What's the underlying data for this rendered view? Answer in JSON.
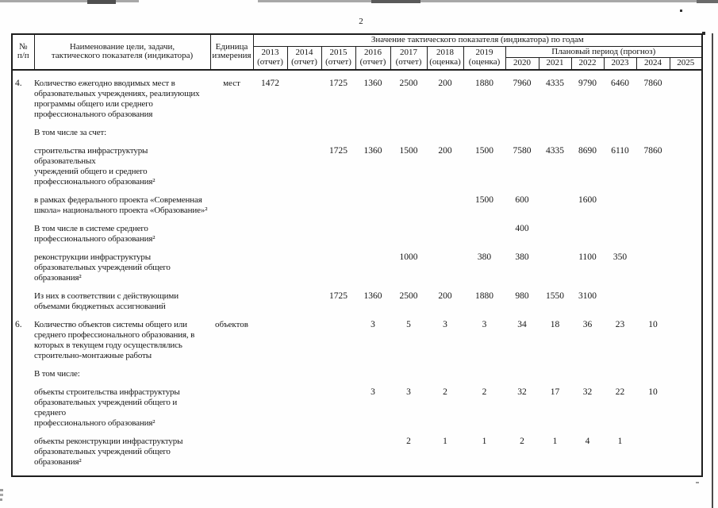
{
  "page": {
    "number": "2"
  },
  "table": {
    "header": {
      "num": "№\nп/п",
      "name": "Наименование цели, задачи,\nтактического показателя (индикатора)",
      "unit": "Единица\nизмерения",
      "values_title": "Значение тактического показателя (индикатора) по годам",
      "years": [
        "2013\n(отчет)",
        "2014\n(отчет)",
        "2015\n(отчет)",
        "2016\n(отчет)",
        "2017\n(отчет)",
        "2018\n(оценка)",
        "2019\n(оценка)"
      ],
      "plan_title": "Плановый период (прогноз)",
      "plan_years": [
        "2020",
        "2021",
        "2022",
        "2023",
        "2024",
        "2025"
      ]
    },
    "rows": [
      {
        "num": "4.",
        "label": "Количество ежегодно вводимых мест в\nобразовательных учреждениях, реализующих\nпрограммы общего или среднего\nпрофессионального образования",
        "unit": "мест",
        "values": [
          "1472",
          "",
          "1725",
          "1360",
          "2500",
          "200",
          "1880",
          "7960",
          "4335",
          "9790",
          "6460",
          "7860",
          ""
        ]
      },
      {
        "num": "",
        "label": "В том числе за счет:",
        "unit": "",
        "values": [
          "",
          "",
          "",
          "",
          "",
          "",
          "",
          "",
          "",
          "",
          "",
          "",
          ""
        ]
      },
      {
        "num": "",
        "label": "строительства инфраструктуры образовательных\nучреждений общего и среднего\nпрофессионального образования²",
        "unit": "",
        "values": [
          "",
          "",
          "1725",
          "1360",
          "1500",
          "200",
          "1500",
          "7580",
          "4335",
          "8690",
          "6110",
          "7860",
          ""
        ]
      },
      {
        "num": "",
        "label": "в рамках федерального проекта «Современная\nшкола» национального проекта «Образование»²",
        "unit": "",
        "values": [
          "",
          "",
          "",
          "",
          "",
          "",
          "1500",
          "600",
          "",
          "1600",
          "",
          "",
          ""
        ]
      },
      {
        "num": "",
        "label": "В том числе в системе среднего\nпрофессионального образования²",
        "unit": "",
        "values": [
          "",
          "",
          "",
          "",
          "",
          "",
          "",
          "400",
          "",
          "",
          "",
          "",
          ""
        ]
      },
      {
        "num": "",
        "label": "реконструкции инфраструктуры\nобразовательных учреждений общего\nобразования²",
        "unit": "",
        "values": [
          "",
          "",
          "",
          "",
          "1000",
          "",
          "380",
          "380",
          "",
          "1100",
          "350",
          "",
          ""
        ]
      },
      {
        "num": "",
        "label": "Из них в соответствии с действующими\nобъемами бюджетных ассигнований",
        "unit": "",
        "values": [
          "",
          "",
          "1725",
          "1360",
          "2500",
          "200",
          "1880",
          "980",
          "1550",
          "3100",
          "",
          "",
          ""
        ]
      },
      {
        "num": "6.",
        "label": "Количество объектов системы общего или\nсреднего профессионального образования, в\nкоторых в текущем году осуществлялись\nстроительно-монтажные работы",
        "unit": "объектов",
        "values": [
          "",
          "",
          "",
          "3",
          "5",
          "3",
          "3",
          "34",
          "18",
          "36",
          "23",
          "10",
          ""
        ]
      },
      {
        "num": "",
        "label": "В том числе:",
        "unit": "",
        "values": [
          "",
          "",
          "",
          "",
          "",
          "",
          "",
          "",
          "",
          "",
          "",
          "",
          ""
        ]
      },
      {
        "num": "",
        "label": "объекты строительства инфраструктуры\nобразовательных учреждений общего и среднего\nпрофессионального образования²",
        "unit": "",
        "values": [
          "",
          "",
          "",
          "3",
          "3",
          "2",
          "2",
          "32",
          "17",
          "32",
          "22",
          "10",
          ""
        ]
      },
      {
        "num": "",
        "label": "объекты реконструкции инфраструктуры\nобразовательных учреждений общего\nобразования²",
        "unit": "",
        "values": [
          "",
          "",
          "",
          "",
          "2",
          "1",
          "1",
          "2",
          "1",
          "4",
          "1",
          "",
          ""
        ]
      }
    ]
  }
}
